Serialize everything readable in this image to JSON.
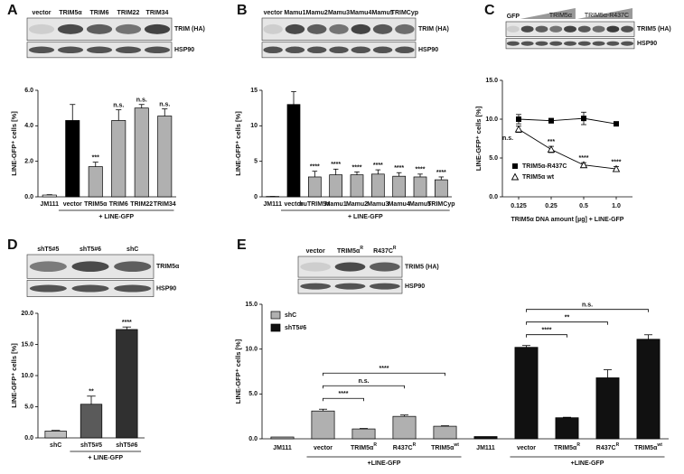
{
  "chart_data": [
    {
      "type": "bar",
      "panel": "A",
      "blot": {
        "lanes": [
          "vector",
          "TRIM5α",
          "TRIM6",
          "TRIM22",
          "TRIM34"
        ],
        "bands": [
          "TRIM (HA)",
          "HSP90"
        ]
      },
      "categories": [
        "JM111",
        "vector",
        "TRIM5α",
        "TRIM6",
        "TRIM22",
        "TRIM34"
      ],
      "values": [
        0.1,
        4.3,
        1.7,
        4.3,
        5.0,
        4.55
      ],
      "errors": [
        0.02,
        0.9,
        0.25,
        0.6,
        0.2,
        0.4
      ],
      "colors": [
        "#ffffff",
        "#000000",
        "#b0b0b0",
        "#b0b0b0",
        "#b0b0b0",
        "#b0b0b0"
      ],
      "annotations": [
        null,
        null,
        "***",
        "n.s.",
        "n.s.",
        "n.s."
      ],
      "y_label": "LINE-GFP⁺ cells [%]",
      "group_label": "+ LINE-GFP",
      "ylim": [
        0,
        6
      ],
      "yticks": [
        {
          "value": 0,
          "label": "0.0"
        },
        {
          "value": 2,
          "label": "2.0"
        },
        {
          "value": 4,
          "label": "4.0"
        },
        {
          "value": 6,
          "label": "6.0"
        }
      ]
    },
    {
      "type": "bar",
      "panel": "B",
      "blot": {
        "lanes": [
          "vector",
          "Mamu1",
          "Mamu2",
          "Mamu3",
          "Mamu4",
          "Mamu5",
          "TRIMCyp"
        ],
        "bands": [
          "TRIM (HA)",
          "HSP90"
        ]
      },
      "categories": [
        "JM111",
        "vector",
        "huTRIM5α",
        "Mamu1",
        "Mamu2",
        "Mamu3",
        "Mamu4",
        "Mamu5",
        "TRIMCyp"
      ],
      "values": [
        0.05,
        13.0,
        2.8,
        3.1,
        3.1,
        3.2,
        2.9,
        2.8,
        2.4
      ],
      "errors": [
        0,
        1.8,
        0.8,
        0.8,
        0.4,
        0.6,
        0.5,
        0.4,
        0.4
      ],
      "colors": [
        "#ffffff",
        "#000000",
        "#b0b0b0",
        "#b0b0b0",
        "#b0b0b0",
        "#b0b0b0",
        "#b0b0b0",
        "#b0b0b0",
        "#b0b0b0"
      ],
      "annotations": [
        null,
        null,
        "****",
        "****",
        "****",
        "****",
        "****",
        "****",
        "****"
      ],
      "y_label": "LINE-GFP⁺ cells [%]",
      "group_label": "+ LINE-GFP",
      "ylim": [
        0,
        15
      ],
      "yticks": [
        0,
        5,
        10,
        15
      ]
    },
    {
      "type": "line",
      "panel": "C",
      "blot": {
        "lanes": [
          "GFP"
        ],
        "wedges": [
          "TRIM5α",
          "TRIM5α-R437C"
        ],
        "bands": [
          "TRIM5 (HA)",
          "HSP90"
        ]
      },
      "categories": [
        "0.125",
        "0.25",
        "0.5",
        "1.0"
      ],
      "series": [
        {
          "name": "TRIM5α-R437C",
          "color": "#000000",
          "marker": "square",
          "values": [
            10.0,
            9.8,
            10.1,
            9.4
          ],
          "errors": [
            0.6,
            0.3,
            0.8,
            0.2
          ]
        },
        {
          "name": "TRIM5α wt",
          "color": "#000000",
          "marker": "open-triangle",
          "values": [
            8.7,
            6.1,
            4.1,
            3.6
          ],
          "errors": [
            0.4,
            0.4,
            0.3,
            0.3
          ],
          "annotations": [
            "n.s.",
            "***",
            "****",
            "****"
          ]
        }
      ],
      "legend": "lower left",
      "y_label": "LINE-GFP⁺ cells [%]",
      "x_label": "TRIM5α DNA amount [µg] + LINE-GFP",
      "ylim": [
        0,
        15
      ],
      "yticks": [
        {
          "value": 0,
          "label": "0.0"
        },
        {
          "value": 5,
          "label": "5.0"
        },
        {
          "value": 10,
          "label": "10.0"
        },
        {
          "value": 15,
          "label": "15.0"
        }
      ]
    },
    {
      "type": "bar",
      "panel": "D",
      "blot": {
        "lanes": [
          "shT5#5",
          "shT5#6",
          "shC"
        ],
        "bands": [
          "TRIM5α",
          "HSP90"
        ]
      },
      "categories": [
        "shC",
        "shT5#5",
        "shT5#6"
      ],
      "values": [
        1.1,
        5.4,
        17.4
      ],
      "errors": [
        0.1,
        1.3,
        0.4
      ],
      "colors": [
        "#bdbdbd",
        "#5a5a5a",
        "#303030"
      ],
      "annotations": [
        null,
        "**",
        "****"
      ],
      "y_label": "LINE-GFP⁺ cells [%]",
      "group_label": "+ LINE-GFP",
      "ylim": [
        0,
        20
      ],
      "yticks": [
        {
          "value": 0,
          "label": "0.0"
        },
        {
          "value": 5,
          "label": "5.0"
        },
        {
          "value": 10,
          "label": "10.0"
        },
        {
          "value": 15,
          "label": "15.0"
        },
        {
          "value": 20,
          "label": "20.0"
        }
      ]
    },
    {
      "type": "bar",
      "panel": "E",
      "blot": {
        "lanes": [
          "vector",
          "TRIM5α",
          "R437C"
        ],
        "lane_superscripts": [
          null,
          "R",
          "R"
        ],
        "bands": [
          "TRIM5 (HA)",
          "HSP90"
        ]
      },
      "categories": [
        "JM111",
        "vector",
        "TRIM5α",
        "R437C",
        "TRIM5α"
      ],
      "superscripts": [
        null,
        null,
        "R",
        "R",
        "wt"
      ],
      "series": [
        {
          "name": "shC",
          "color": "#b0b0b0",
          "values": [
            0.2,
            3.1,
            1.1,
            2.5,
            1.4
          ],
          "errors": [
            0,
            0.2,
            0.05,
            0.15,
            0.05
          ],
          "annotations": [
            null,
            null,
            "****",
            "n.s.",
            "****"
          ]
        },
        {
          "name": "shT5#6",
          "color": "#111111",
          "values": [
            0.25,
            10.2,
            2.35,
            6.8,
            11.1
          ],
          "errors": [
            0,
            0.2,
            0.05,
            0.9,
            0.5
          ],
          "annotations": [
            null,
            null,
            "****",
            "**",
            "n.s."
          ]
        }
      ],
      "legend": "upper left",
      "y_label": "LINE-GFP⁺ cells [%]",
      "group_labels": [
        "+LINE-GFP",
        "+LINE-GFP"
      ],
      "ylim": [
        0,
        15
      ],
      "yticks": [
        {
          "value": 0,
          "label": "0.0"
        },
        {
          "value": 5,
          "label": "5.0"
        },
        {
          "value": 10,
          "label": "10.0"
        },
        {
          "value": 15,
          "label": "15.0"
        }
      ]
    }
  ]
}
